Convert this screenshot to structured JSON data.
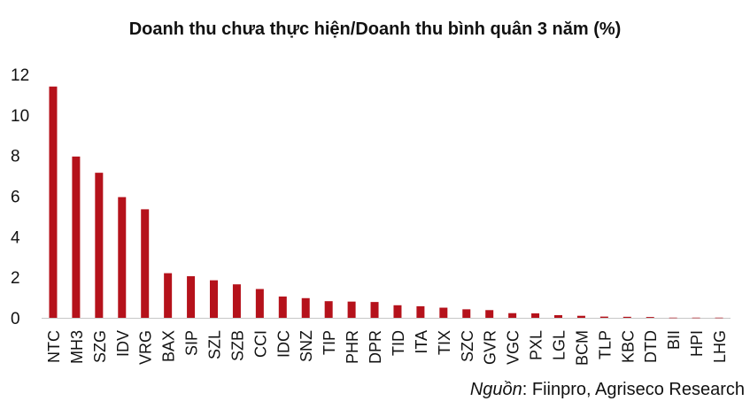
{
  "chart_data": {
    "type": "bar",
    "title": "Doanh thu chưa thực hiện/Doanh thu bình quân 3 năm (%)",
    "xlabel": "",
    "ylabel": "",
    "ylim": [
      0,
      12
    ],
    "yticks": [
      0,
      2,
      4,
      6,
      8,
      10,
      12
    ],
    "grid": false,
    "legend": "none",
    "bar_color": "#b5121b",
    "categories": [
      "NTC",
      "MH3",
      "SZG",
      "IDV",
      "VRG",
      "BAX",
      "SIP",
      "SZL",
      "SZB",
      "CCI",
      "IDC",
      "SNZ",
      "TIP",
      "PHR",
      "DPR",
      "TID",
      "ITA",
      "TIX",
      "SZC",
      "GVR",
      "VGC",
      "PXL",
      "LGL",
      "BCM",
      "TLP",
      "KBC",
      "DTD",
      "BII",
      "HPI",
      "LHG"
    ],
    "values": [
      11.4,
      7.95,
      7.15,
      5.95,
      5.35,
      2.2,
      2.05,
      1.85,
      1.65,
      1.42,
      1.05,
      0.97,
      0.82,
      0.8,
      0.78,
      0.62,
      0.57,
      0.5,
      0.42,
      0.38,
      0.23,
      0.22,
      0.13,
      0.1,
      0.06,
      0.05,
      0.04,
      0.01,
      0.01,
      0.01
    ]
  },
  "source": {
    "prefix": "Nguồn",
    "text": ": Fiinpro, Agriseco Research"
  }
}
